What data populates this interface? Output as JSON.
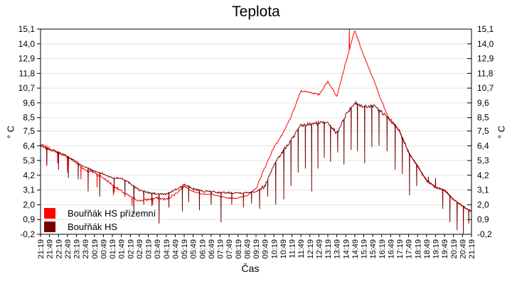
{
  "chart_data": {
    "type": "line",
    "title": "Teplota",
    "xlabel": "Čas",
    "ylabel_left": "° C",
    "ylabel_right": "° C",
    "ylim": [
      -0.2,
      15.1
    ],
    "grid": "horizontal-only",
    "legend_position": "inside-bottom-left",
    "y_ticks": [
      "15,1",
      "14,0",
      "12,9",
      "11,8",
      "10,7",
      "9,6",
      "8,5",
      "7,5",
      "6,4",
      "5,3",
      "4,2",
      "3,1",
      "2,0",
      "0,9",
      "-0,2"
    ],
    "y_tick_values": [
      15.1,
      14.0,
      12.9,
      11.8,
      10.7,
      9.6,
      8.5,
      7.5,
      6.4,
      5.3,
      4.2,
      3.1,
      2.0,
      0.9,
      -0.2
    ],
    "x": [
      "21:19",
      "21:49",
      "22:19",
      "22:49",
      "23:19",
      "23:49",
      "00:19",
      "00:49",
      "01:19",
      "01:49",
      "02:19",
      "02:49",
      "03:19",
      "03:49",
      "04:19",
      "04:49",
      "05:19",
      "05:49",
      "06:19",
      "06:49",
      "07:19",
      "07:49",
      "08:19",
      "08:49",
      "09:19",
      "09:49",
      "10:19",
      "10:49",
      "11:19",
      "11:49",
      "12:19",
      "12:49",
      "13:19",
      "13:49",
      "14:19",
      "14:49",
      "15:19",
      "15:49",
      "16:19",
      "16:49",
      "17:19",
      "17:49",
      "18:19",
      "18:49",
      "19:19",
      "19:49",
      "20:19",
      "20:49",
      "21:19"
    ],
    "series": [
      {
        "name": "Bouřňák HS přízemní",
        "color": "#ff0000",
        "values": [
          6.5,
          6.2,
          5.9,
          5.6,
          5.1,
          4.6,
          4.4,
          4.0,
          3.5,
          3.0,
          2.6,
          2.3,
          2.4,
          2.5,
          2.4,
          2.8,
          3.4,
          3.0,
          2.8,
          2.8,
          2.6,
          2.5,
          2.5,
          2.7,
          3.2,
          4.8,
          6.3,
          7.3,
          8.7,
          10.5,
          10.4,
          10.2,
          11.2,
          10.1,
          12.6,
          15.0,
          13.1,
          11.5,
          9.7,
          8.2,
          7.5,
          5.9,
          4.9,
          3.8,
          3.3,
          3.1,
          2.4,
          1.9,
          1.5
        ],
        "spikes": [
          [
            0.7,
            5.0
          ],
          [
            1.9,
            5.1
          ],
          [
            3.0,
            4.4
          ],
          [
            4.5,
            3.9
          ],
          [
            6.3,
            3.3
          ],
          [
            8.1,
            2.7
          ],
          [
            10.2,
            1.9
          ],
          [
            12.5,
            2.0
          ],
          [
            34.4,
            15.1
          ],
          [
            35.3,
            14.5
          ]
        ]
      },
      {
        "name": "Bouřňák HS",
        "color": "#7a0000",
        "values": [
          6.4,
          6.1,
          5.9,
          5.6,
          5.2,
          4.8,
          4.5,
          4.3,
          4.0,
          4.0,
          3.6,
          3.1,
          2.9,
          2.8,
          2.8,
          3.1,
          3.5,
          3.2,
          3.0,
          3.0,
          2.9,
          2.9,
          2.9,
          2.9,
          3.0,
          3.4,
          5.0,
          6.0,
          6.9,
          7.9,
          8.0,
          8.1,
          8.2,
          7.3,
          8.7,
          9.6,
          9.3,
          9.4,
          8.9,
          8.3,
          7.5,
          5.9,
          4.9,
          3.8,
          3.3,
          3.1,
          2.4,
          1.9,
          1.5
        ],
        "spikes": [
          [
            0.7,
            4.9
          ],
          [
            2.0,
            4.6
          ],
          [
            3.1,
            4.0
          ],
          [
            4.2,
            3.9
          ],
          [
            5.3,
            3.0
          ],
          [
            6.6,
            2.6
          ],
          [
            8.2,
            2.9
          ],
          [
            9.4,
            2.6
          ],
          [
            10.4,
            1.3
          ],
          [
            11.5,
            2.0
          ],
          [
            12.4,
            1.9
          ],
          [
            13.2,
            0.6
          ],
          [
            14.3,
            1.8
          ],
          [
            15.8,
            1.5
          ],
          [
            16.5,
            2.2
          ],
          [
            17.7,
            1.6
          ],
          [
            19.0,
            2.0
          ],
          [
            20.1,
            0.7
          ],
          [
            21.3,
            2.0
          ],
          [
            22.6,
            1.8
          ],
          [
            23.5,
            2.1
          ],
          [
            24.4,
            1.7
          ],
          [
            25.3,
            2.6
          ],
          [
            26.2,
            2.0
          ],
          [
            27.1,
            2.4
          ],
          [
            27.9,
            3.4
          ],
          [
            28.7,
            4.4
          ],
          [
            29.5,
            4.7
          ],
          [
            30.2,
            3.0
          ],
          [
            30.9,
            4.7
          ],
          [
            31.6,
            5.5
          ],
          [
            32.3,
            5.2
          ],
          [
            33.1,
            5.9
          ],
          [
            33.8,
            5.0
          ],
          [
            34.6,
            6.1
          ],
          [
            35.3,
            6.0
          ],
          [
            36.1,
            5.1
          ],
          [
            36.9,
            6.3
          ],
          [
            37.7,
            6.4
          ],
          [
            38.6,
            6.0
          ],
          [
            39.5,
            4.6
          ],
          [
            40.3,
            4.3
          ],
          [
            41.1,
            2.7
          ],
          [
            41.9,
            3.4
          ],
          [
            42.5,
            4.2
          ],
          [
            43.2,
            4.1
          ],
          [
            44.0,
            4.0
          ],
          [
            44.8,
            1.7
          ],
          [
            45.6,
            0.7
          ],
          [
            46.4,
            0.1
          ],
          [
            47.1,
            -0.2
          ],
          [
            47.7,
            0.6
          ]
        ]
      }
    ]
  },
  "colors": {
    "grid": "#e4e4e4",
    "axis": "#000000",
    "background": "#ffffff"
  }
}
